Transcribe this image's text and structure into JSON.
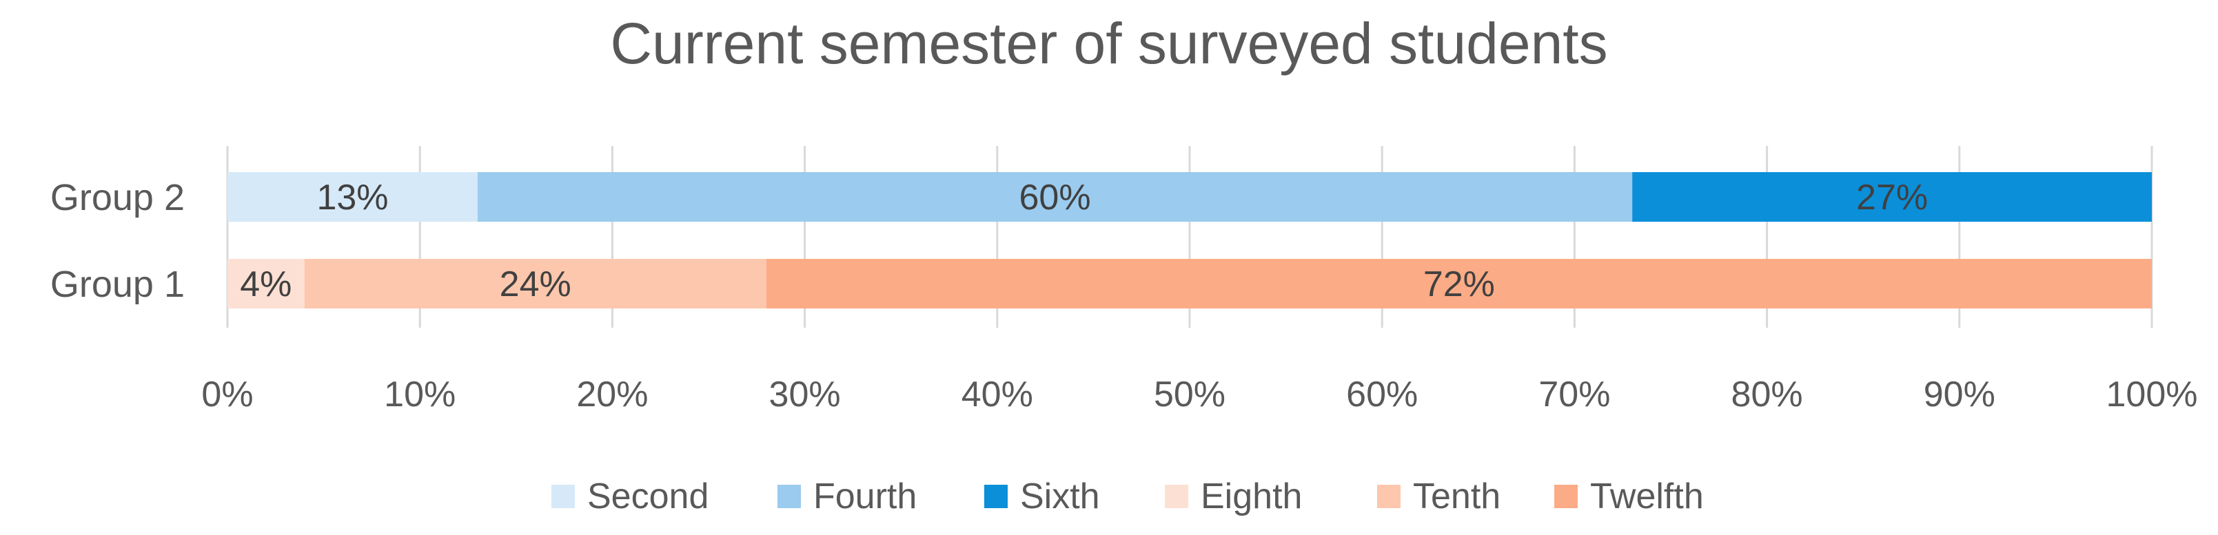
{
  "chart_data": {
    "type": "bar",
    "orientation": "horizontal",
    "stacked": "percent",
    "title": "Current semester of surveyed students",
    "xlabel": "",
    "ylabel": "",
    "xlim": [
      0,
      100
    ],
    "x_ticks": [
      "0%",
      "10%",
      "20%",
      "30%",
      "40%",
      "50%",
      "60%",
      "70%",
      "80%",
      "90%",
      "100%"
    ],
    "grid": "vertical",
    "legend_position": "bottom",
    "categories": [
      "Group 2",
      "Group 1"
    ],
    "series": [
      {
        "name": "Second",
        "color": "#d6e9f8",
        "values": [
          13,
          0
        ],
        "labels": [
          "13%",
          ""
        ]
      },
      {
        "name": "Fourth",
        "color": "#9bcbee",
        "values": [
          60,
          0
        ],
        "labels": [
          "60%",
          ""
        ]
      },
      {
        "name": "Sixth",
        "color": "#0b8fd9",
        "values": [
          27,
          0
        ],
        "labels": [
          "27%",
          ""
        ]
      },
      {
        "name": "Eighth",
        "color": "#fde0d4",
        "values": [
          0,
          4
        ],
        "labels": [
          "",
          "4%"
        ]
      },
      {
        "name": "Tenth",
        "color": "#fdc7ad",
        "values": [
          0,
          24
        ],
        "labels": [
          "",
          "24%"
        ]
      },
      {
        "name": "Twelfth",
        "color": "#fbab85",
        "values": [
          0,
          72
        ],
        "labels": [
          "",
          "72%"
        ]
      }
    ]
  }
}
